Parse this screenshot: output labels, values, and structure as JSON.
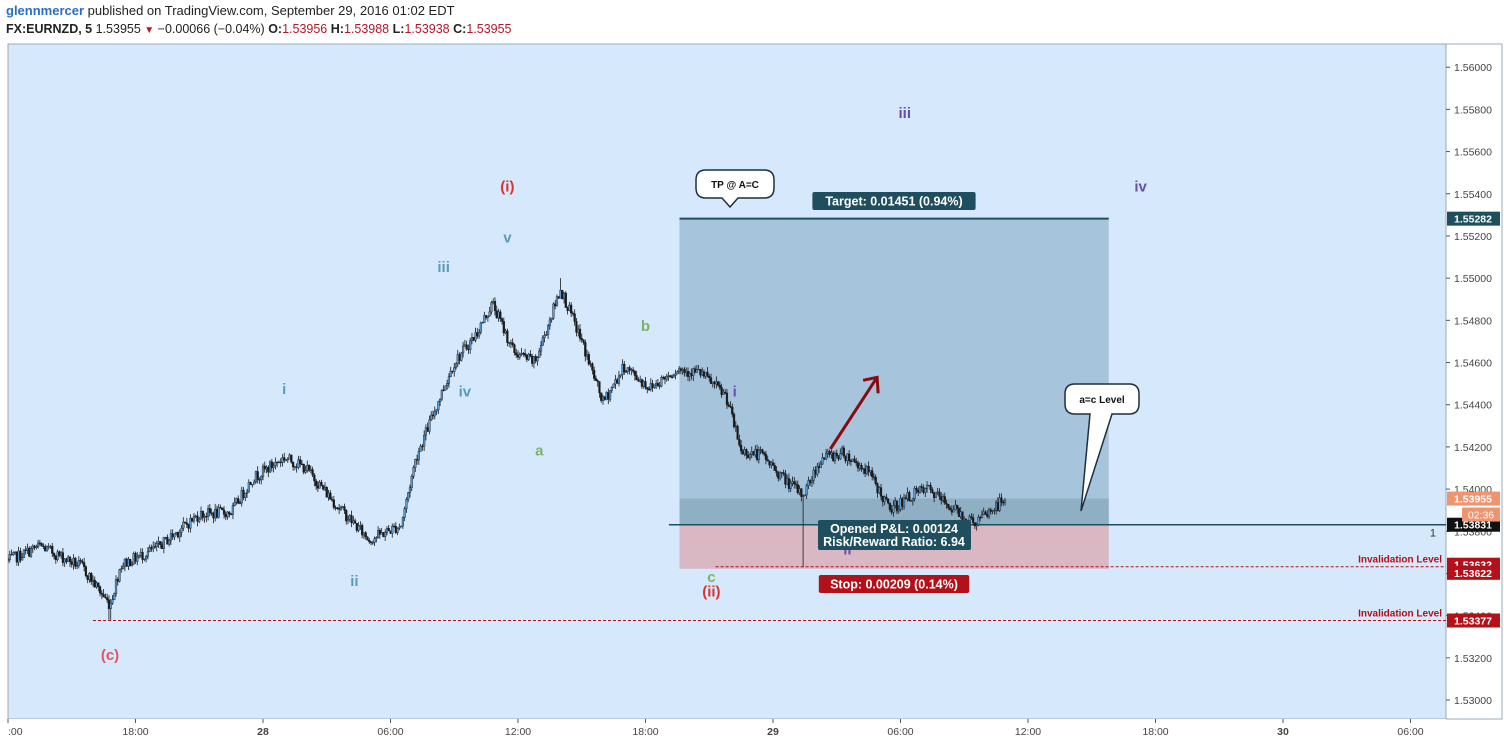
{
  "header": {
    "user": "glennmercer",
    "published": " published on TradingView.com, September 29, 2016 01:02 EDT",
    "symbol": "FX:EURNZD, 5",
    "last": "1.53955",
    "change": "−0.00066 (−0.04%)",
    "o_label": "O:",
    "o": "1.53956",
    "h_label": "H:",
    "h": "1.53988",
    "l_label": "L:",
    "l": "1.53938",
    "c_label": "C:",
    "c": "1.53955"
  },
  "colors": {
    "background": "#d6e8fb",
    "candle": "#1a1a1a",
    "target_zone": "#a6c4dc",
    "stop_zone": "#d9b8c4",
    "target_badge": "#1f4f5e",
    "stop_badge": "#b3111a",
    "arrow": "#8b0a12",
    "price_badge_target": "#1f4f5e",
    "price_badge_last": "#f0946f",
    "price_badge_entry": "#111111",
    "price_badge_stop": "#b3111a"
  },
  "chart_data": {
    "type": "candlestick",
    "symbol": "FX:EURNZD",
    "interval": "5",
    "ylim": [
      1.5291,
      1.5611
    ],
    "y_ticks": [
      "1.56000",
      "1.55800",
      "1.55600",
      "1.55400",
      "1.55200",
      "1.55000",
      "1.54800",
      "1.54600",
      "1.54400",
      "1.54200",
      "1.54000",
      "1.53800",
      "1.53600",
      "1.53400",
      "1.53200",
      "1.53000"
    ],
    "x_ticks": [
      ":00",
      "18:00",
      "28",
      "06:00",
      "12:00",
      "18:00",
      "29",
      "06:00",
      "12:00",
      "18:00",
      "30",
      "06:00"
    ],
    "close_path": [
      {
        "t": 0,
        "p": 1.5366
      },
      {
        "t": 1.5,
        "p": 1.5373
      },
      {
        "t": 3.5,
        "p": 1.5363
      },
      {
        "t": 4.8,
        "p": 1.5345
      },
      {
        "t": 5.3,
        "p": 1.5364
      },
      {
        "t": 7,
        "p": 1.5372
      },
      {
        "t": 9,
        "p": 1.5388
      },
      {
        "t": 10.5,
        "p": 1.5389
      },
      {
        "t": 11.5,
        "p": 1.5405
      },
      {
        "t": 13,
        "p": 1.5415
      },
      {
        "t": 14,
        "p": 1.541
      },
      {
        "t": 15.5,
        "p": 1.5392
      },
      {
        "t": 17,
        "p": 1.5376
      },
      {
        "t": 18.5,
        "p": 1.5383
      },
      {
        "t": 19.2,
        "p": 1.5415
      },
      {
        "t": 20.5,
        "p": 1.5448
      },
      {
        "t": 21,
        "p": 1.546
      },
      {
        "t": 22,
        "p": 1.5473
      },
      {
        "t": 22.8,
        "p": 1.5488
      },
      {
        "t": 23.8,
        "p": 1.5465
      },
      {
        "t": 24.8,
        "p": 1.546
      },
      {
        "t": 26,
        "p": 1.5495
      },
      {
        "t": 27,
        "p": 1.547
      },
      {
        "t": 28,
        "p": 1.5441
      },
      {
        "t": 29,
        "p": 1.5458
      },
      {
        "t": 30.2,
        "p": 1.5448
      },
      {
        "t": 31.5,
        "p": 1.5457
      },
      {
        "t": 32.6,
        "p": 1.5455
      },
      {
        "t": 33.8,
        "p": 1.5444
      },
      {
        "t": 34.5,
        "p": 1.5418
      },
      {
        "t": 35.5,
        "p": 1.5416
      },
      {
        "t": 36.5,
        "p": 1.5405
      },
      {
        "t": 37.4,
        "p": 1.5397
      },
      {
        "t": 38.3,
        "p": 1.5415
      },
      {
        "t": 39.3,
        "p": 1.5417
      },
      {
        "t": 40.5,
        "p": 1.5408
      },
      {
        "t": 41.5,
        "p": 1.539
      },
      {
        "t": 42.5,
        "p": 1.5397
      },
      {
        "t": 43.3,
        "p": 1.54
      },
      {
        "t": 44.3,
        "p": 1.5392
      },
      {
        "t": 45.5,
        "p": 1.5384
      },
      {
        "t": 46.3,
        "p": 1.539
      },
      {
        "t": 47,
        "p": 1.5396
      }
    ],
    "key_extremes": [
      {
        "t": 4.8,
        "low": 1.5338,
        "label": "(c)"
      },
      {
        "t": 26,
        "high": 1.55,
        "label": "(i)"
      },
      {
        "t": 37.4,
        "low": 1.5363,
        "label": "(ii)"
      }
    ],
    "position": {
      "type": "long",
      "entry": 1.53831,
      "target": 1.55282,
      "stop": 1.53622,
      "target_label": "Target: 0.01451 (0.94%)",
      "stop_label": "Stop: 0.00209 (0.14%)",
      "pnl_label": "Opened P&L: 0.00124",
      "rr_label": "Risk/Reward Ratio: 6.94",
      "qty_label": "1"
    },
    "horizontal_lines": [
      {
        "price": 1.53632,
        "label": "Invalidation Level"
      },
      {
        "price": 1.53377,
        "label": "Invalidation Level"
      }
    ],
    "price_badges": [
      {
        "price": 1.55282,
        "text": "1.55282",
        "kind": "target"
      },
      {
        "price": 1.53955,
        "text": "1.53955",
        "kind": "last"
      },
      {
        "price": 1.53831,
        "text": "1.53831",
        "kind": "entry"
      },
      {
        "price": 1.53632,
        "text": "1.53632",
        "kind": "stop"
      },
      {
        "price": 1.53622,
        "text": "1.53622",
        "kind": "stop"
      },
      {
        "price": 1.53377,
        "text": "1.53377",
        "kind": "stop"
      }
    ],
    "countdown": "02:36",
    "wave_labels": [
      {
        "text": "(c)",
        "t": 4.8,
        "p": 1.5319,
        "color": "#e05566"
      },
      {
        "text": "i",
        "t": 13,
        "p": 1.5445,
        "color": "#5b9bb8"
      },
      {
        "text": "ii",
        "t": 16.3,
        "p": 1.5354,
        "color": "#5b9bb8"
      },
      {
        "text": "iii",
        "t": 20.5,
        "p": 1.5503,
        "color": "#5b9bb8"
      },
      {
        "text": "iv",
        "t": 21.5,
        "p": 1.5444,
        "color": "#5b9bb8"
      },
      {
        "text": "v",
        "t": 23.5,
        "p": 1.5517,
        "color": "#5b9bb8"
      },
      {
        "text": "(i)",
        "t": 23.5,
        "p": 1.5541,
        "color": "#d63434"
      },
      {
        "text": "a",
        "t": 25,
        "p": 1.5416,
        "color": "#7cb36b"
      },
      {
        "text": "b",
        "t": 30,
        "p": 1.5475,
        "color": "#7cb36b"
      },
      {
        "text": "c",
        "t": 33.1,
        "p": 1.5356,
        "color": "#7cb36b"
      },
      {
        "text": "(ii)",
        "t": 33.1,
        "p": 1.5349,
        "color": "#d63434"
      },
      {
        "text": "i",
        "t": 34.2,
        "p": 1.5444,
        "color": "#6a4fa8"
      },
      {
        "text": "ii",
        "t": 39.5,
        "p": 1.5369,
        "color": "#6a4fa8"
      },
      {
        "text": "iii",
        "t": 42.2,
        "p": 1.5576,
        "color": "#6a4fa8"
      },
      {
        "text": "iv",
        "t": 53.3,
        "p": 1.5541,
        "color": "#6a4fa8"
      }
    ],
    "callouts": [
      "TP @ A=C",
      "a=c Level"
    ]
  }
}
